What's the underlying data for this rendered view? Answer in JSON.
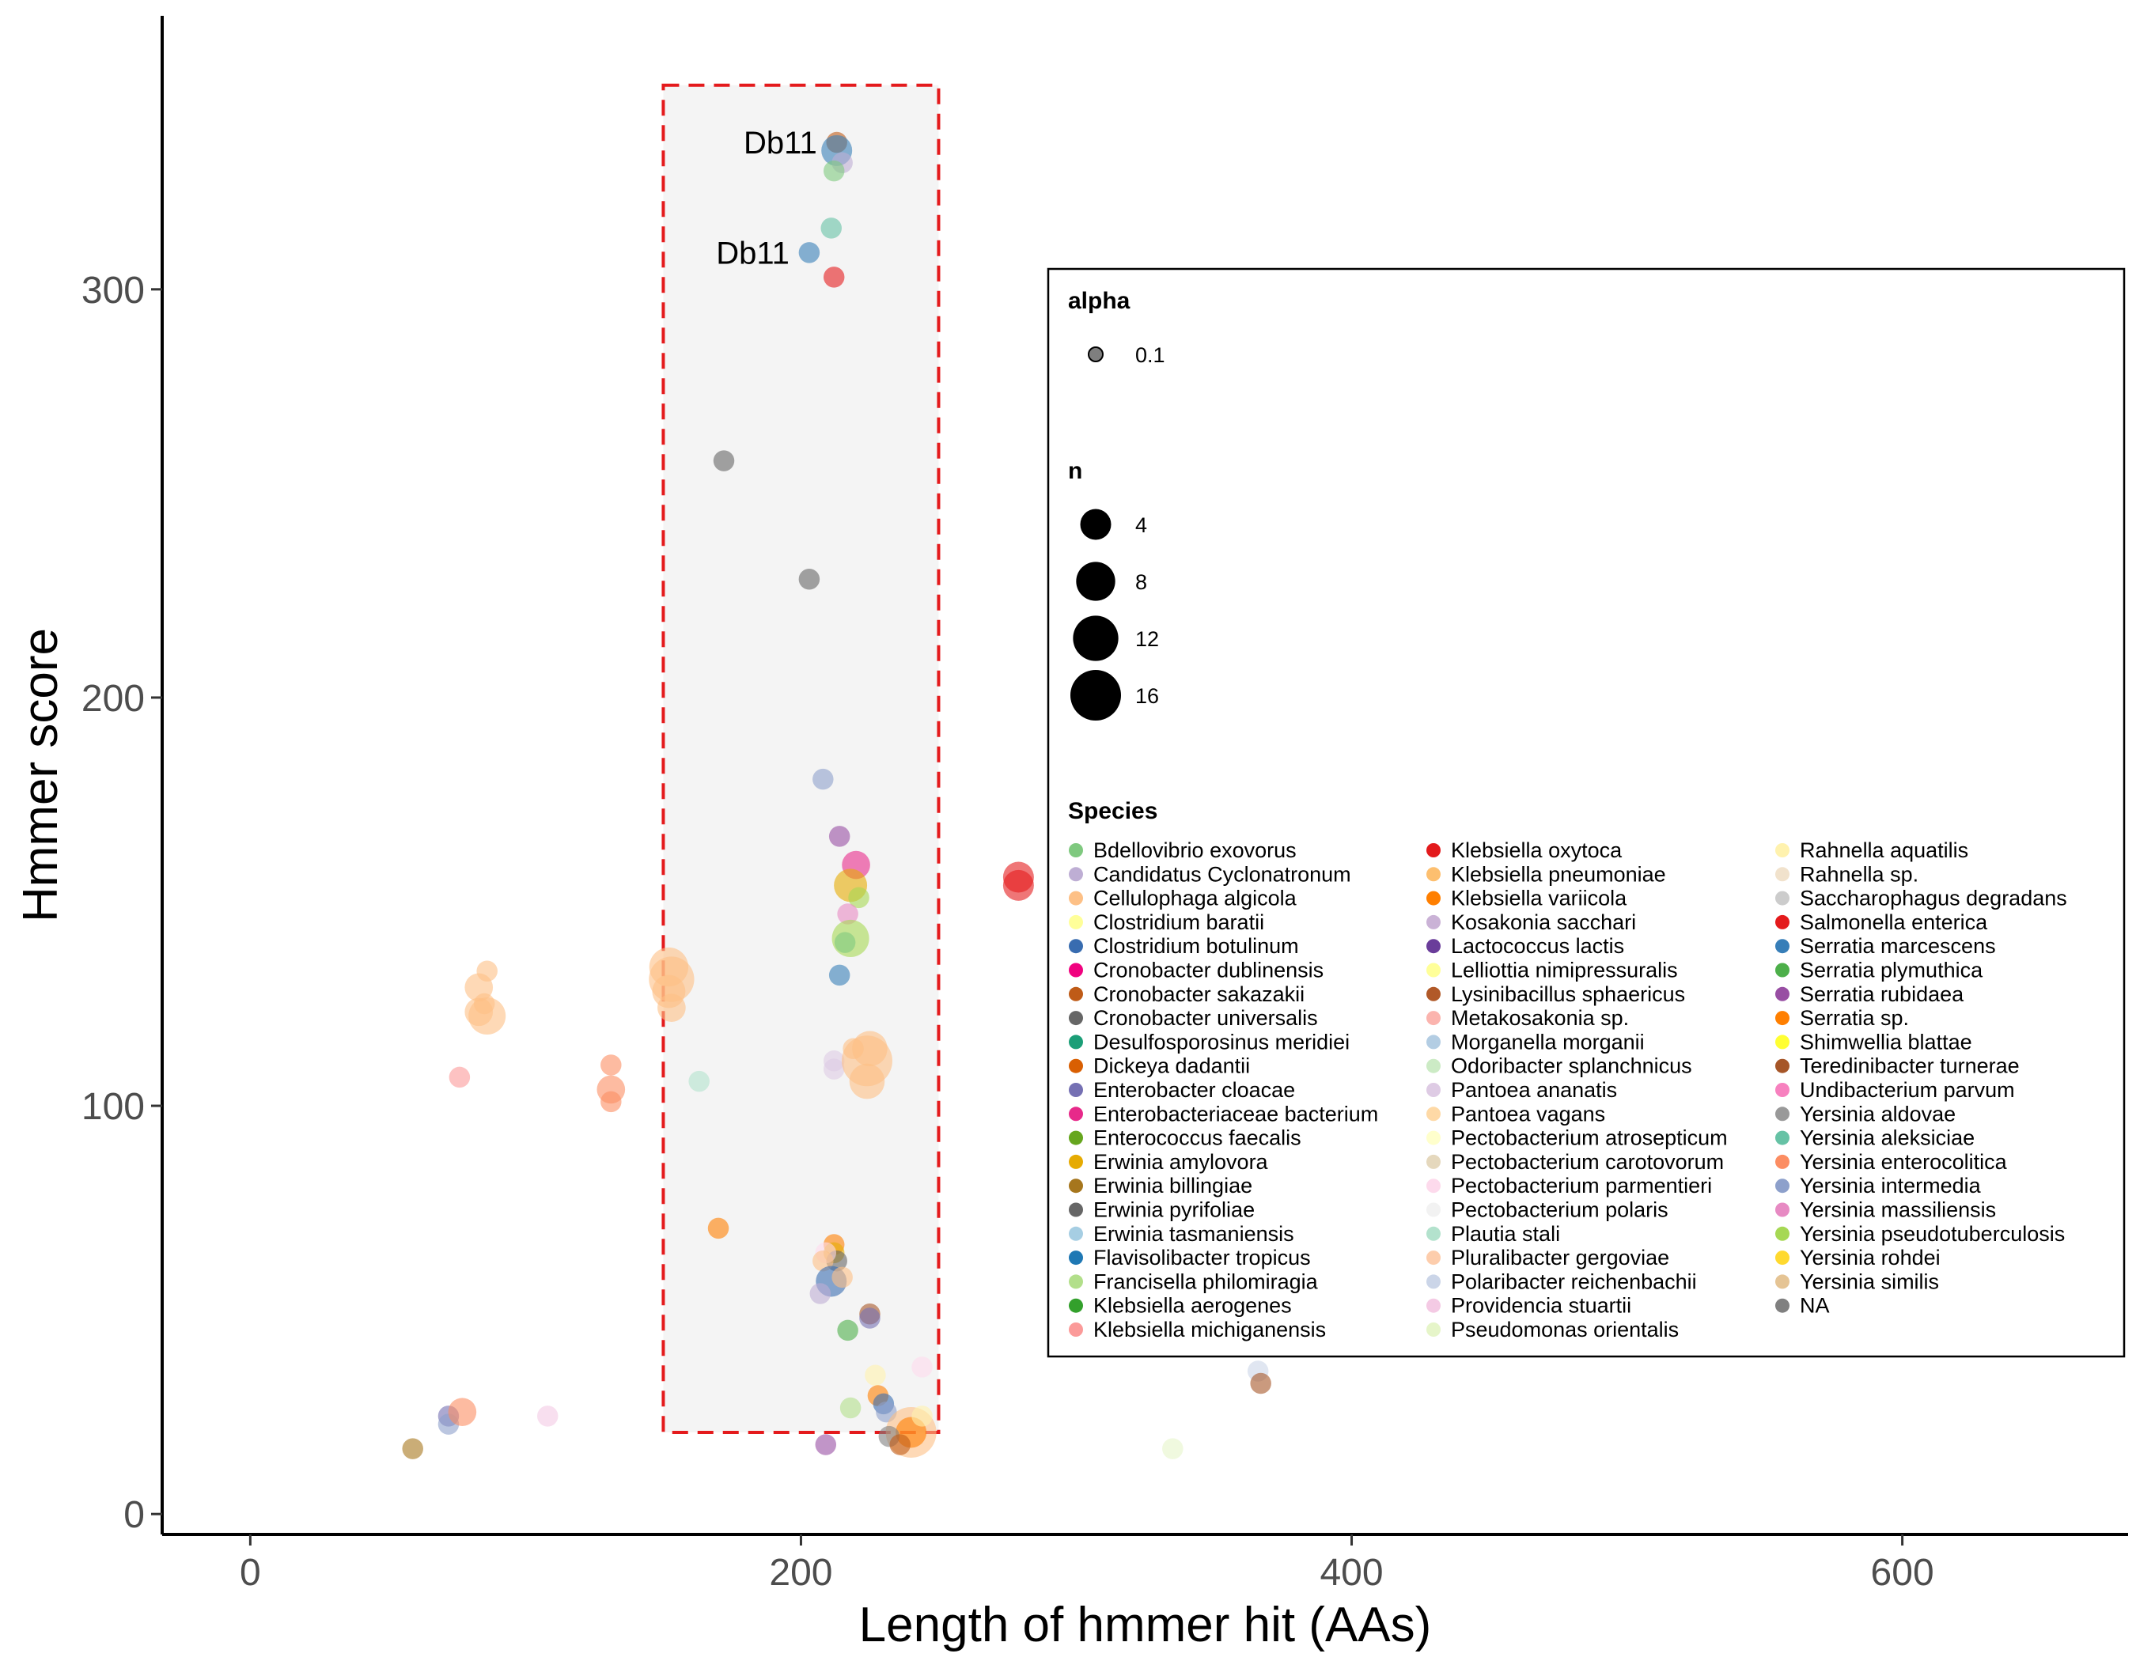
{
  "chart_data": {
    "type": "scatter",
    "xlabel": "Length of hmmer hit (AAs)",
    "ylabel": "Hmmer score",
    "xlim": [
      -32,
      682
    ],
    "ylim": [
      -5,
      367
    ],
    "x_ticks": [
      0,
      200,
      400,
      600
    ],
    "y_ticks": [
      0,
      100,
      200,
      300
    ],
    "grid": false,
    "legend_position": "right-inset",
    "highlight_region": {
      "x": [
        150,
        250
      ],
      "y": [
        20,
        350
      ],
      "style": "dashed",
      "color": "#e41a1c",
      "fill": "#f4f4f4"
    },
    "annotations": [
      {
        "text": "Db11",
        "x": 213,
        "y": 336
      },
      {
        "text": "Db11",
        "x": 203,
        "y": 309
      }
    ],
    "legend": {
      "alpha_title": "alpha",
      "alpha_value": "0.1",
      "size_title": "n",
      "size_values": [
        "4",
        "8",
        "12",
        "16"
      ],
      "species_title": "Species"
    },
    "species": [
      {
        "name": "Bdellovibrio exovorus",
        "color": "#7fc97f"
      },
      {
        "name": "Candidatus Cyclonatronum",
        "color": "#beaed4"
      },
      {
        "name": "Cellulophaga algicola",
        "color": "#fdc086"
      },
      {
        "name": "Clostridium baratii",
        "color": "#ffff99"
      },
      {
        "name": "Clostridium botulinum",
        "color": "#386cb0"
      },
      {
        "name": "Cronobacter dublinensis",
        "color": "#f0027f"
      },
      {
        "name": "Cronobacter sakazakii",
        "color": "#bf5b17"
      },
      {
        "name": "Cronobacter universalis",
        "color": "#666666"
      },
      {
        "name": "Desulfosporosinus meridiei",
        "color": "#1b9e77"
      },
      {
        "name": "Dickeya dadantii",
        "color": "#d95f02"
      },
      {
        "name": "Enterobacter cloacae",
        "color": "#7570b3"
      },
      {
        "name": "Enterobacteriaceae bacterium",
        "color": "#e7298a"
      },
      {
        "name": "Enterococcus faecalis",
        "color": "#66a61e"
      },
      {
        "name": "Erwinia amylovora",
        "color": "#e6ab02"
      },
      {
        "name": "Erwinia billingiae",
        "color": "#a6761d"
      },
      {
        "name": "Erwinia pyrifoliae",
        "color": "#666666"
      },
      {
        "name": "Erwinia tasmaniensis",
        "color": "#a6cee3"
      },
      {
        "name": "Flavisolibacter tropicus",
        "color": "#1f78b4"
      },
      {
        "name": "Francisella philomiragia",
        "color": "#b2df8a"
      },
      {
        "name": "Klebsiella aerogenes",
        "color": "#33a02c"
      },
      {
        "name": "Klebsiella michiganensis",
        "color": "#fb9a99"
      },
      {
        "name": "Klebsiella oxytoca",
        "color": "#e31a1c"
      },
      {
        "name": "Klebsiella pneumoniae",
        "color": "#fdbf6f"
      },
      {
        "name": "Klebsiella variicola",
        "color": "#ff7f00"
      },
      {
        "name": "Kosakonia sacchari",
        "color": "#cab2d6"
      },
      {
        "name": "Lactococcus lactis",
        "color": "#6a3d9a"
      },
      {
        "name": "Lelliottia nimipressuralis",
        "color": "#ffff99"
      },
      {
        "name": "Lysinibacillus sphaericus",
        "color": "#b15928"
      },
      {
        "name": "Metakosakonia sp.",
        "color": "#fbb4ae"
      },
      {
        "name": "Morganella morganii",
        "color": "#b3cde3"
      },
      {
        "name": "Odoribacter splanchnicus",
        "color": "#ccebc5"
      },
      {
        "name": "Pantoea ananatis",
        "color": "#decbe4"
      },
      {
        "name": "Pantoea vagans",
        "color": "#fed9a6"
      },
      {
        "name": "Pectobacterium atrosepticum",
        "color": "#ffffcc"
      },
      {
        "name": "Pectobacterium carotovorum",
        "color": "#e5d8bd"
      },
      {
        "name": "Pectobacterium parmentieri",
        "color": "#fddaec"
      },
      {
        "name": "Pectobacterium polaris",
        "color": "#f2f2f2"
      },
      {
        "name": "Plautia stali",
        "color": "#b3e2cd"
      },
      {
        "name": "Pluralibacter gergoviae",
        "color": "#fdcdac"
      },
      {
        "name": "Polaribacter reichenbachii",
        "color": "#cbd5e8"
      },
      {
        "name": "Providencia stuartii",
        "color": "#f4cae4"
      },
      {
        "name": "Pseudomonas orientalis",
        "color": "#e6f5c9"
      },
      {
        "name": "Rahnella aquatilis",
        "color": "#fff2ae"
      },
      {
        "name": "Rahnella sp.",
        "color": "#f1e2cc"
      },
      {
        "name": "Saccharophagus degradans",
        "color": "#cccccc"
      },
      {
        "name": "Salmonella enterica",
        "color": "#e41a1c"
      },
      {
        "name": "Serratia marcescens",
        "color": "#377eb8"
      },
      {
        "name": "Serratia plymuthica",
        "color": "#4daf4a"
      },
      {
        "name": "Serratia rubidaea",
        "color": "#984ea3"
      },
      {
        "name": "Serratia sp.",
        "color": "#ff7f00"
      },
      {
        "name": "Shimwellia blattae",
        "color": "#ffff33"
      },
      {
        "name": "Teredinibacter turnerae",
        "color": "#a65628"
      },
      {
        "name": "Undibacterium parvum",
        "color": "#f781bf"
      },
      {
        "name": "Yersinia aldovae",
        "color": "#999999"
      },
      {
        "name": "Yersinia aleksiciae",
        "color": "#66c2a5"
      },
      {
        "name": "Yersinia enterocolitica",
        "color": "#fc8d62"
      },
      {
        "name": "Yersinia intermedia",
        "color": "#8da0cb"
      },
      {
        "name": "Yersinia massiliensis",
        "color": "#e78ac3"
      },
      {
        "name": "Yersinia pseudotuberculosis",
        "color": "#a6d854"
      },
      {
        "name": "Yersinia rohdei",
        "color": "#ffd92f"
      },
      {
        "name": "Yersinia similis",
        "color": "#e5c494"
      },
      {
        "name": "NA",
        "color": "#808080"
      }
    ],
    "points": [
      {
        "x": 213,
        "y": 336,
        "n": 1,
        "color": "#bf5b17"
      },
      {
        "x": 213,
        "y": 334,
        "n": 4,
        "color": "#377eb8"
      },
      {
        "x": 215,
        "y": 331,
        "n": 1,
        "color": "#beaed4"
      },
      {
        "x": 212,
        "y": 329,
        "n": 1,
        "color": "#7fc97f"
      },
      {
        "x": 211,
        "y": 315,
        "n": 1,
        "color": "#66c2a5"
      },
      {
        "x": 203,
        "y": 309,
        "n": 1,
        "color": "#377eb8"
      },
      {
        "x": 212,
        "y": 303,
        "n": 1,
        "color": "#e41a1c"
      },
      {
        "x": 172,
        "y": 258,
        "n": 1,
        "color": "#666666"
      },
      {
        "x": 203,
        "y": 229,
        "n": 1,
        "color": "#666666"
      },
      {
        "x": 208,
        "y": 180,
        "n": 1,
        "color": "#8da0cb"
      },
      {
        "x": 214,
        "y": 166,
        "n": 1,
        "color": "#984ea3"
      },
      {
        "x": 220,
        "y": 159,
        "n": 3,
        "color": "#e7298a"
      },
      {
        "x": 279,
        "y": 156,
        "n": 4,
        "color": "#e41a1c"
      },
      {
        "x": 279,
        "y": 154,
        "n": 4,
        "color": "#e41a1c"
      },
      {
        "x": 218,
        "y": 154,
        "n": 5,
        "color": "#e6ab02"
      },
      {
        "x": 221,
        "y": 151,
        "n": 1,
        "color": "#a6d854"
      },
      {
        "x": 217,
        "y": 147,
        "n": 1,
        "color": "#e78ac3"
      },
      {
        "x": 218,
        "y": 141,
        "n": 7,
        "color": "#a6d854"
      },
      {
        "x": 216,
        "y": 140,
        "n": 1,
        "color": "#7fc97f"
      },
      {
        "x": 152,
        "y": 134,
        "n": 8,
        "color": "#fdc086"
      },
      {
        "x": 153,
        "y": 131,
        "n": 12,
        "color": "#fdc086"
      },
      {
        "x": 152,
        "y": 128,
        "n": 5,
        "color": "#fdc086"
      },
      {
        "x": 153,
        "y": 124,
        "n": 3,
        "color": "#fdc086"
      },
      {
        "x": 214,
        "y": 132,
        "n": 1,
        "color": "#377eb8"
      },
      {
        "x": 86,
        "y": 133,
        "n": 1,
        "color": "#fdc086"
      },
      {
        "x": 83,
        "y": 129,
        "n": 3,
        "color": "#fdc086"
      },
      {
        "x": 85,
        "y": 125,
        "n": 1,
        "color": "#fdc086"
      },
      {
        "x": 86,
        "y": 122,
        "n": 7,
        "color": "#fdc086"
      },
      {
        "x": 83,
        "y": 123,
        "n": 3,
        "color": "#fdc086"
      },
      {
        "x": 219,
        "y": 114,
        "n": 1,
        "color": "#fdc086"
      },
      {
        "x": 212,
        "y": 111,
        "n": 1,
        "color": "#decbe4"
      },
      {
        "x": 212,
        "y": 109,
        "n": 1,
        "color": "#decbe4"
      },
      {
        "x": 224,
        "y": 111,
        "n": 16,
        "color": "#fdc086"
      },
      {
        "x": 225,
        "y": 114,
        "n": 6,
        "color": "#fdc086"
      },
      {
        "x": 224,
        "y": 106,
        "n": 6,
        "color": "#fdc086"
      },
      {
        "x": 131,
        "y": 110,
        "n": 1,
        "color": "#fc8d62"
      },
      {
        "x": 131,
        "y": 104,
        "n": 3,
        "color": "#fc8d62"
      },
      {
        "x": 131,
        "y": 101,
        "n": 1,
        "color": "#fc8d62"
      },
      {
        "x": 76,
        "y": 107,
        "n": 1,
        "color": "#fb9a99"
      },
      {
        "x": 163,
        "y": 106,
        "n": 1,
        "color": "#b3e2cd"
      },
      {
        "x": 170,
        "y": 70,
        "n": 1,
        "color": "#ff7f00"
      },
      {
        "x": 212,
        "y": 66,
        "n": 1,
        "color": "#ff7f00"
      },
      {
        "x": 212,
        "y": 64,
        "n": 1,
        "color": "#e6ab02"
      },
      {
        "x": 213,
        "y": 62,
        "n": 1,
        "color": "#666666"
      },
      {
        "x": 209,
        "y": 64,
        "n": 1,
        "color": "#fddaec"
      },
      {
        "x": 208,
        "y": 62,
        "n": 1,
        "color": "#fdc086"
      },
      {
        "x": 211,
        "y": 57,
        "n": 4,
        "color": "#386cb0"
      },
      {
        "x": 215,
        "y": 58,
        "n": 1,
        "color": "#fdc086"
      },
      {
        "x": 207,
        "y": 54,
        "n": 1,
        "color": "#beaed4"
      },
      {
        "x": 225,
        "y": 49,
        "n": 1,
        "color": "#a65628"
      },
      {
        "x": 225,
        "y": 48,
        "n": 1,
        "color": "#7570b3"
      },
      {
        "x": 217,
        "y": 45,
        "n": 1,
        "color": "#4daf4a"
      },
      {
        "x": 227,
        "y": 34,
        "n": 1,
        "color": "#fff2ae"
      },
      {
        "x": 244,
        "y": 36,
        "n": 1,
        "color": "#fddaec"
      },
      {
        "x": 228,
        "y": 29,
        "n": 1,
        "color": "#ff7f00"
      },
      {
        "x": 230,
        "y": 27,
        "n": 1,
        "color": "#386cb0"
      },
      {
        "x": 231,
        "y": 25,
        "n": 1,
        "color": "#8da0cb"
      },
      {
        "x": 218,
        "y": 26,
        "n": 1,
        "color": "#b2df8a"
      },
      {
        "x": 240,
        "y": 20,
        "n": 16,
        "color": "#fdc086"
      },
      {
        "x": 240,
        "y": 20,
        "n": 4,
        "color": "#ff7f00"
      },
      {
        "x": 244,
        "y": 24,
        "n": 1,
        "color": "#fff2ae"
      },
      {
        "x": 232,
        "y": 19,
        "n": 1,
        "color": "#808080"
      },
      {
        "x": 236,
        "y": 17,
        "n": 1,
        "color": "#bf5b17"
      },
      {
        "x": 209,
        "y": 17,
        "n": 1,
        "color": "#984ea3"
      },
      {
        "x": 72,
        "y": 24,
        "n": 1,
        "color": "#7570b3"
      },
      {
        "x": 72,
        "y": 22,
        "n": 1,
        "color": "#8da0cb"
      },
      {
        "x": 77,
        "y": 25,
        "n": 3,
        "color": "#fc8d62"
      },
      {
        "x": 108,
        "y": 24,
        "n": 1,
        "color": "#f4cae4"
      },
      {
        "x": 59,
        "y": 16,
        "n": 1,
        "color": "#a6761d"
      },
      {
        "x": 335,
        "y": 16,
        "n": 1,
        "color": "#e6f5c9"
      },
      {
        "x": 366,
        "y": 35,
        "n": 1,
        "color": "#cbd5e8"
      },
      {
        "x": 367,
        "y": 32,
        "n": 1,
        "color": "#a65628"
      }
    ]
  }
}
